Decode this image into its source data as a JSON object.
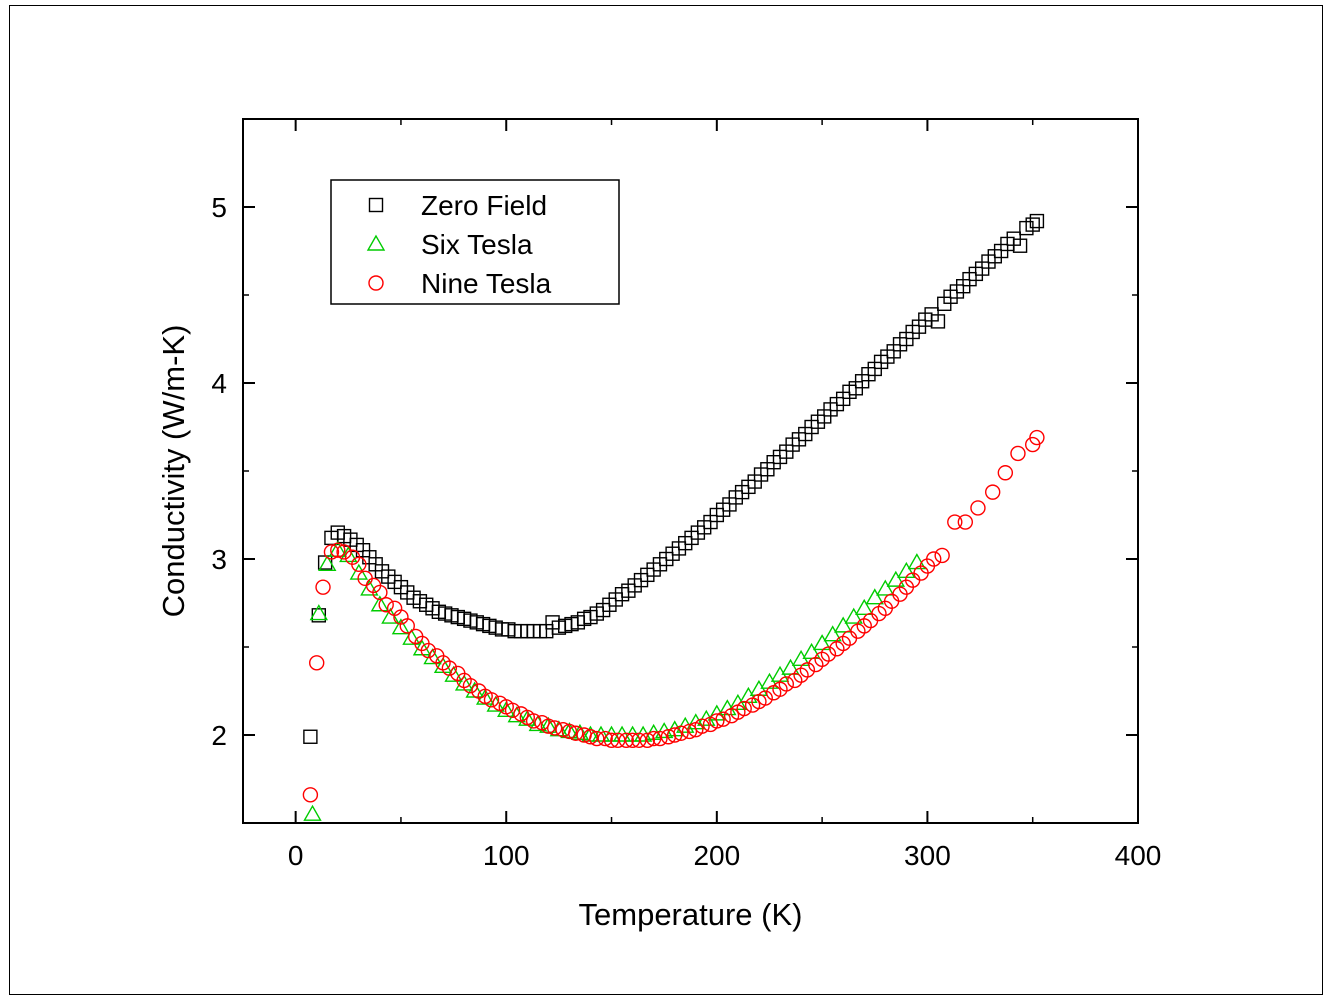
{
  "chart_data": {
    "type": "scatter",
    "xlabel": "Temperature (K)",
    "ylabel": "Conductivity (W/m-K)",
    "xlim": [
      -25,
      400
    ],
    "ylim": [
      1.5,
      5.5
    ],
    "xticks": [
      0,
      100,
      200,
      300,
      400
    ],
    "xtick_labels": [
      "0",
      "100",
      "200",
      "300",
      "400"
    ],
    "yticks": [
      2,
      3,
      4,
      5
    ],
    "ytick_labels": [
      "2",
      "3",
      "4",
      "5"
    ],
    "grid": false,
    "legend_position": "top-left",
    "series": [
      {
        "name": "Zero Field",
        "marker": "square",
        "color": "#000000",
        "x": [
          7,
          11,
          14,
          17,
          20,
          23,
          26,
          29,
          32,
          35,
          38,
          41,
          44,
          47,
          50,
          53,
          56,
          59,
          62,
          65,
          68,
          71,
          74,
          77,
          80,
          83,
          86,
          89,
          92,
          95,
          98,
          101,
          104,
          107,
          110,
          113,
          116,
          119,
          122,
          125,
          128,
          131,
          134,
          137,
          140,
          143,
          146,
          149,
          152,
          155,
          158,
          161,
          164,
          167,
          170,
          173,
          176,
          179,
          182,
          185,
          188,
          191,
          194,
          197,
          200,
          203,
          206,
          209,
          212,
          215,
          218,
          221,
          224,
          227,
          230,
          233,
          236,
          239,
          242,
          245,
          248,
          251,
          254,
          257,
          260,
          263,
          266,
          269,
          272,
          275,
          278,
          281,
          284,
          287,
          290,
          293,
          296,
          299,
          302,
          305,
          308,
          311,
          314,
          317,
          320,
          323,
          326,
          329,
          332,
          335,
          338,
          341,
          344,
          347,
          350,
          352
        ],
        "y": [
          1.99,
          2.68,
          2.98,
          3.12,
          3.15,
          3.13,
          3.11,
          3.08,
          3.05,
          3.01,
          2.97,
          2.93,
          2.9,
          2.87,
          2.84,
          2.81,
          2.78,
          2.76,
          2.74,
          2.72,
          2.7,
          2.69,
          2.68,
          2.67,
          2.66,
          2.65,
          2.64,
          2.63,
          2.62,
          2.61,
          2.6,
          2.6,
          2.59,
          2.59,
          2.59,
          2.59,
          2.59,
          2.59,
          2.64,
          2.61,
          2.62,
          2.63,
          2.64,
          2.66,
          2.67,
          2.69,
          2.71,
          2.74,
          2.77,
          2.8,
          2.82,
          2.85,
          2.88,
          2.91,
          2.94,
          2.97,
          3.0,
          3.03,
          3.06,
          3.09,
          3.12,
          3.15,
          3.18,
          3.21,
          3.25,
          3.28,
          3.31,
          3.35,
          3.38,
          3.41,
          3.44,
          3.48,
          3.51,
          3.55,
          3.58,
          3.61,
          3.65,
          3.68,
          3.71,
          3.75,
          3.78,
          3.81,
          3.85,
          3.88,
          3.91,
          3.95,
          3.97,
          4.01,
          4.05,
          4.08,
          4.12,
          4.15,
          4.18,
          4.22,
          4.25,
          4.29,
          4.32,
          4.36,
          4.39,
          4.35,
          4.45,
          4.49,
          4.52,
          4.55,
          4.59,
          4.62,
          4.65,
          4.69,
          4.72,
          4.75,
          4.79,
          4.82,
          4.78,
          4.88,
          4.9,
          4.92
        ]
      },
      {
        "name": "Six Tesla",
        "marker": "triangle",
        "color": "#00cc00",
        "x": [
          8,
          11,
          15,
          20,
          25,
          30,
          35,
          40,
          45,
          50,
          55,
          60,
          65,
          70,
          75,
          80,
          85,
          90,
          95,
          100,
          105,
          110,
          115,
          120,
          125,
          130,
          135,
          140,
          145,
          150,
          155,
          160,
          165,
          170,
          175,
          180,
          185,
          190,
          195,
          200,
          205,
          210,
          215,
          220,
          225,
          230,
          235,
          240,
          245,
          250,
          255,
          260,
          265,
          270,
          275,
          280,
          285,
          290,
          295
        ],
        "y": [
          1.55,
          2.69,
          2.97,
          3.05,
          3.02,
          2.92,
          2.83,
          2.74,
          2.67,
          2.61,
          2.55,
          2.49,
          2.44,
          2.39,
          2.34,
          2.29,
          2.25,
          2.21,
          2.17,
          2.14,
          2.11,
          2.09,
          2.06,
          2.05,
          2.03,
          2.02,
          2.01,
          2.0,
          2.0,
          2.0,
          2.0,
          2.0,
          2.0,
          2.01,
          2.02,
          2.03,
          2.05,
          2.07,
          2.09,
          2.12,
          2.15,
          2.18,
          2.22,
          2.26,
          2.3,
          2.34,
          2.38,
          2.43,
          2.47,
          2.52,
          2.57,
          2.62,
          2.67,
          2.72,
          2.78,
          2.83,
          2.88,
          2.93,
          2.98
        ]
      },
      {
        "name": "Nine Tesla",
        "marker": "circle",
        "color": "#ff0000",
        "x": [
          7,
          10,
          13,
          17,
          20,
          23,
          27,
          30,
          33,
          37,
          40,
          43,
          47,
          50,
          53,
          57,
          60,
          63,
          67,
          70,
          73,
          77,
          80,
          83,
          87,
          90,
          93,
          97,
          100,
          103,
          107,
          110,
          113,
          117,
          120,
          123,
          127,
          130,
          133,
          137,
          140,
          143,
          147,
          150,
          153,
          157,
          160,
          163,
          167,
          170,
          173,
          177,
          180,
          183,
          187,
          190,
          193,
          197,
          200,
          203,
          207,
          210,
          213,
          217,
          220,
          223,
          227,
          230,
          233,
          237,
          240,
          243,
          247,
          250,
          253,
          257,
          260,
          263,
          267,
          270,
          273,
          277,
          280,
          283,
          287,
          290,
          293,
          297,
          300,
          303,
          307,
          313,
          318,
          324,
          331,
          337,
          343,
          350,
          352
        ],
        "y": [
          1.66,
          2.41,
          2.84,
          3.04,
          3.05,
          3.04,
          3.01,
          2.97,
          2.89,
          2.85,
          2.81,
          2.74,
          2.72,
          2.67,
          2.62,
          2.56,
          2.52,
          2.48,
          2.45,
          2.41,
          2.38,
          2.35,
          2.31,
          2.28,
          2.25,
          2.22,
          2.2,
          2.18,
          2.16,
          2.14,
          2.12,
          2.1,
          2.08,
          2.07,
          2.05,
          2.04,
          2.03,
          2.02,
          2.01,
          2.0,
          1.99,
          1.98,
          1.98,
          1.97,
          1.97,
          1.97,
          1.97,
          1.97,
          1.97,
          1.98,
          1.98,
          1.99,
          2.0,
          2.01,
          2.02,
          2.03,
          2.05,
          2.06,
          2.08,
          2.09,
          2.11,
          2.13,
          2.15,
          2.17,
          2.19,
          2.21,
          2.24,
          2.26,
          2.29,
          2.31,
          2.34,
          2.37,
          2.4,
          2.43,
          2.46,
          2.49,
          2.52,
          2.55,
          2.59,
          2.62,
          2.65,
          2.69,
          2.72,
          2.76,
          2.8,
          2.84,
          2.88,
          2.92,
          2.96,
          3.0,
          3.02,
          3.21,
          3.21,
          3.29,
          3.38,
          3.49,
          3.6,
          3.65,
          3.69
        ]
      }
    ]
  }
}
